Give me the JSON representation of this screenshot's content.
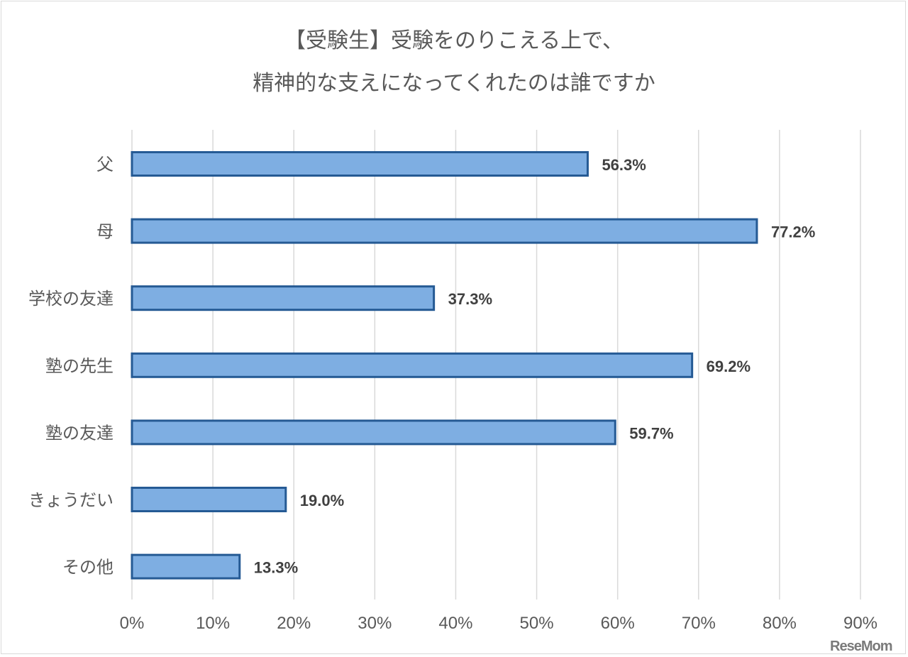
{
  "chart_data": {
    "type": "bar",
    "orientation": "horizontal",
    "title": [
      "【受験生】受験をのりこえる上で、",
      "精神的な支えになってくれたのは誰ですか"
    ],
    "categories": [
      "父",
      "母",
      "学校の友達",
      "塾の先生",
      "塾の友達",
      "きょうだい",
      "その他"
    ],
    "values": [
      56.3,
      77.2,
      37.3,
      69.2,
      59.7,
      19.0,
      13.3
    ],
    "data_labels": [
      "56.3%",
      "77.2%",
      "37.3%",
      "69.2%",
      "59.7%",
      "19.0%",
      "13.3%"
    ],
    "xlim": [
      0,
      90
    ],
    "x_ticks": [
      "0%",
      "10%",
      "20%",
      "30%",
      "40%",
      "50%",
      "60%",
      "70%",
      "80%",
      "90%"
    ],
    "xlabel": "",
    "ylabel": "",
    "grid": "vertical",
    "colors": {
      "bar_fill": "#7eaee2",
      "bar_stroke": "#255a94",
      "grid": "#d9d9d9",
      "text": "#595959",
      "data_label": "#404040"
    }
  },
  "watermark": "ReseMom"
}
